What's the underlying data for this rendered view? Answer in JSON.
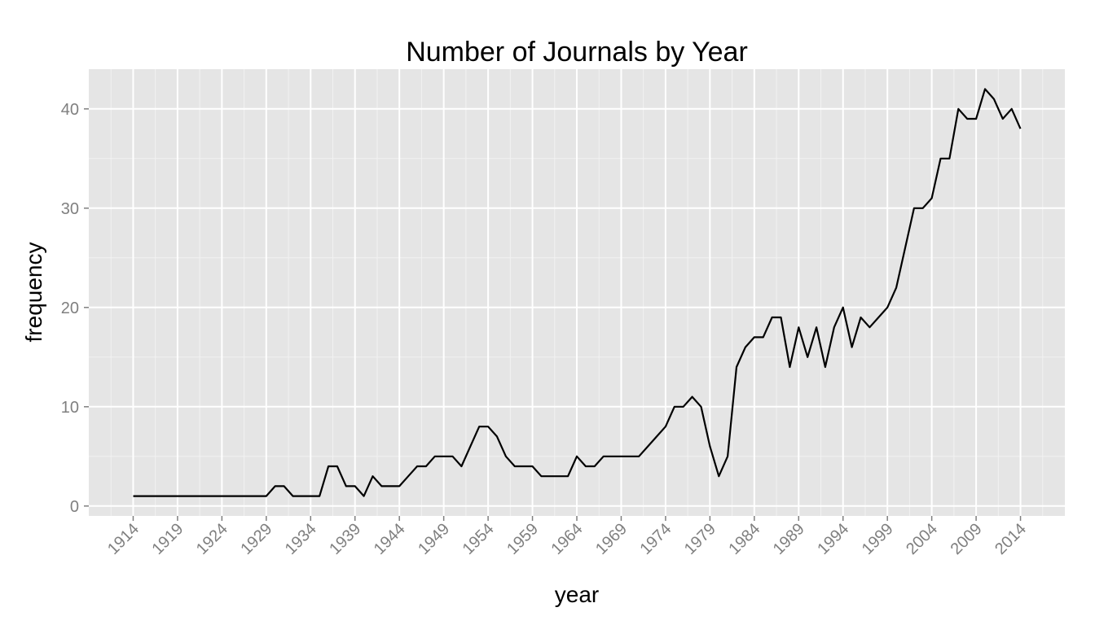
{
  "chart_data": {
    "type": "line",
    "title": "Number of Journals by Year",
    "xlabel": "year",
    "ylabel": "frequency",
    "xlim": [
      1909,
      2019
    ],
    "ylim": [
      -1,
      44
    ],
    "x_ticks": [
      1914,
      1919,
      1924,
      1929,
      1934,
      1939,
      1944,
      1949,
      1954,
      1959,
      1964,
      1969,
      1974,
      1979,
      1984,
      1989,
      1994,
      1999,
      2004,
      2009,
      2014
    ],
    "y_ticks": [
      0,
      10,
      20,
      30,
      40
    ],
    "grid": true,
    "background": "#e5e5e5",
    "line_color": "#000000",
    "series": [
      {
        "x": [
          1914,
          1915,
          1916,
          1917,
          1918,
          1919,
          1920,
          1921,
          1922,
          1923,
          1924,
          1925,
          1926,
          1927,
          1928,
          1929,
          1930,
          1931,
          1932,
          1933,
          1934,
          1935,
          1936,
          1937,
          1938,
          1939,
          1940,
          1941,
          1942,
          1943,
          1944,
          1945,
          1946,
          1947,
          1948,
          1949,
          1950,
          1951,
          1952,
          1953,
          1954,
          1955,
          1956,
          1957,
          1958,
          1959,
          1960,
          1961,
          1962,
          1963,
          1964,
          1965,
          1966,
          1967,
          1968,
          1969,
          1970,
          1971,
          1972,
          1973,
          1974,
          1975,
          1976,
          1977,
          1978,
          1979,
          1980,
          1981,
          1982,
          1983,
          1984,
          1985,
          1986,
          1987,
          1988,
          1989,
          1990,
          1991,
          1992,
          1993,
          1994,
          1995,
          1996,
          1997,
          1998,
          1999,
          2000,
          2001,
          2002,
          2003,
          2004,
          2005,
          2006,
          2007,
          2008,
          2009,
          2010,
          2011,
          2012,
          2013,
          2014
        ],
        "values": [
          1,
          1,
          1,
          1,
          1,
          1,
          1,
          1,
          1,
          1,
          1,
          1,
          1,
          1,
          1,
          1,
          2,
          2,
          1,
          1,
          1,
          1,
          4,
          4,
          2,
          2,
          1,
          3,
          2,
          2,
          2,
          3,
          4,
          4,
          5,
          5,
          5,
          4,
          6,
          8,
          8,
          7,
          5,
          4,
          4,
          4,
          3,
          3,
          3,
          3,
          5,
          4,
          4,
          5,
          5,
          5,
          5,
          5,
          6,
          7,
          8,
          10,
          10,
          11,
          10,
          6,
          3,
          5,
          14,
          16,
          17,
          17,
          19,
          19,
          14,
          18,
          15,
          18,
          14,
          18,
          20,
          16,
          19,
          18,
          19,
          20,
          22,
          26,
          30,
          30,
          31,
          35,
          35,
          40,
          39,
          39,
          42,
          41,
          39,
          40,
          38
        ]
      }
    ]
  }
}
